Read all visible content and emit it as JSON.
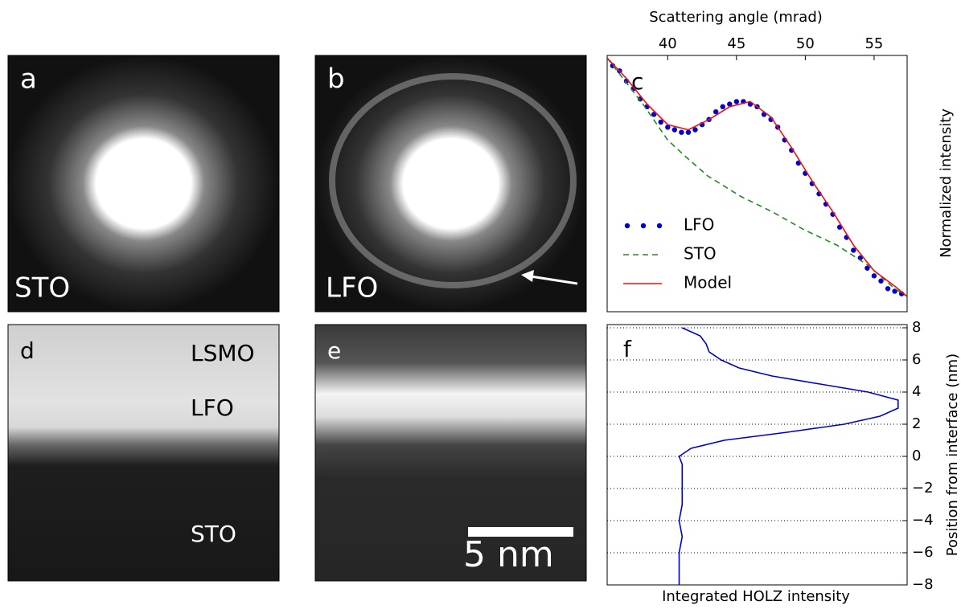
{
  "image_panels": [
    {
      "letter": "a",
      "labels": [
        "STO"
      ]
    },
    {
      "letter": "b",
      "labels": [
        "LFO"
      ]
    },
    {
      "letter": "d",
      "labels": [
        "LSMO",
        "LFO",
        "STO"
      ]
    },
    {
      "letter": "e",
      "labels": [
        "5 nm"
      ]
    }
  ],
  "chart_data": [
    {
      "type": "scatter-line",
      "panel": "c",
      "xlabel": "Scattering angle (mrad)",
      "ylabel": "Normalized intensity",
      "xlim": [
        35.6,
        57.4
      ],
      "xticks": [
        40,
        45,
        50,
        55
      ],
      "ylim": [
        0,
        1
      ],
      "legend": "lower left",
      "x": [
        36,
        36.5,
        37,
        37.5,
        38,
        38.5,
        39,
        39.5,
        40,
        40.5,
        41,
        41.5,
        42,
        42.5,
        43,
        43.5,
        44,
        44.5,
        45,
        45.5,
        46,
        46.5,
        47,
        47.5,
        48,
        48.5,
        49,
        49.5,
        50,
        50.5,
        51,
        51.5,
        52,
        52.5,
        53,
        53.5,
        54,
        54.5,
        55,
        55.5,
        56,
        56.5,
        57
      ],
      "series": [
        {
          "name": "LFO",
          "color": "#0000cc",
          "style": "dots",
          "values": [
            0.96,
            0.94,
            0.9,
            0.87,
            0.83,
            0.8,
            0.77,
            0.74,
            0.72,
            0.71,
            0.7,
            0.7,
            0.71,
            0.73,
            0.75,
            0.78,
            0.8,
            0.81,
            0.82,
            0.82,
            0.81,
            0.8,
            0.77,
            0.75,
            0.72,
            0.67,
            0.63,
            0.58,
            0.54,
            0.5,
            0.46,
            0.42,
            0.38,
            0.33,
            0.29,
            0.24,
            0.21,
            0.17,
            0.14,
            0.12,
            0.09,
            0.08,
            0.07
          ]
        },
        {
          "name": "STO",
          "color": "#228b22",
          "style": "dashed",
          "x": [
            35.6,
            38.2,
            40,
            41.2,
            42.9,
            45.3,
            47.6,
            49.9,
            52.3,
            54.6,
            56.5,
            57.4
          ],
          "values": [
            0.99,
            0.81,
            0.67,
            0.61,
            0.53,
            0.45,
            0.39,
            0.32,
            0.26,
            0.18,
            0.09,
            0.06
          ]
        },
        {
          "name": "Model",
          "color": "#ee1111",
          "style": "solid",
          "x": [
            35.6,
            37,
            38.5,
            40,
            41.5,
            43,
            44.5,
            46,
            47.5,
            49,
            50.5,
            52,
            53.5,
            55,
            56.5,
            57.4
          ],
          "values": [
            0.99,
            0.91,
            0.81,
            0.73,
            0.71,
            0.75,
            0.8,
            0.82,
            0.76,
            0.64,
            0.51,
            0.39,
            0.26,
            0.16,
            0.1,
            0.06
          ]
        }
      ]
    },
    {
      "type": "profile",
      "panel": "f",
      "xlabel": "Integrated HOLZ intensity",
      "ylabel": "Position from interface (nm)",
      "xlim": [
        0,
        1
      ],
      "ylim": [
        -8,
        8
      ],
      "grid": true,
      "color": "#0000cc",
      "yticks": [
        {
          "value": -8,
          "label": "−8"
        },
        {
          "value": -6,
          "label": "−6"
        },
        {
          "value": -4,
          "label": "−4"
        },
        {
          "value": -2,
          "label": "−2"
        },
        0,
        2,
        4,
        6,
        8
      ],
      "y": [
        8,
        7.5,
        7,
        6.5,
        6,
        5.5,
        5,
        4.5,
        4,
        3.5,
        3,
        2.5,
        2,
        1.5,
        1,
        0.5,
        0,
        -0.5,
        -1,
        -2,
        -3,
        -4,
        -5,
        -6,
        -7,
        -8
      ],
      "values": [
        0.25,
        0.31,
        0.33,
        0.34,
        0.38,
        0.44,
        0.55,
        0.71,
        0.87,
        0.97,
        0.97,
        0.91,
        0.79,
        0.6,
        0.39,
        0.28,
        0.24,
        0.25,
        0.25,
        0.25,
        0.25,
        0.24,
        0.25,
        0.24,
        0.24,
        0.24
      ]
    }
  ]
}
